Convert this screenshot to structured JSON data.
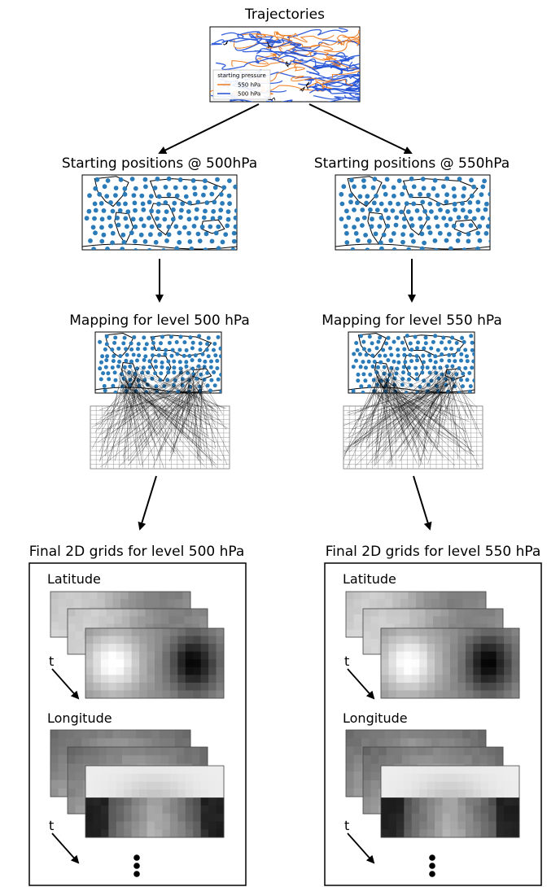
{
  "top": {
    "title": "Trajectories",
    "legend": {
      "title": "starting pressure",
      "items": [
        "550 hPa",
        "500 hPa"
      ]
    }
  },
  "columns": [
    {
      "start_title": "Starting positions @ 500hPa",
      "mapping_title": "Mapping for level 500 hPa",
      "final_title": "Final 2D grids for level 500 hPa",
      "lat_label": "Latitude",
      "lon_label": "Longitude",
      "time_label": "t",
      "time_label_2": "t"
    },
    {
      "start_title": "Starting positions @ 550hPa",
      "mapping_title": "Mapping for level 550 hPa",
      "final_title": "Final 2D grids for level 550 hPa",
      "lat_label": "Latitude",
      "lon_label": "Longitude",
      "time_label": "t",
      "time_label_2": "t"
    }
  ],
  "colors": {
    "blue": "#1f4fd6",
    "orange": "#f07a1a",
    "point": "#2b7bb9",
    "line": "#000000"
  }
}
